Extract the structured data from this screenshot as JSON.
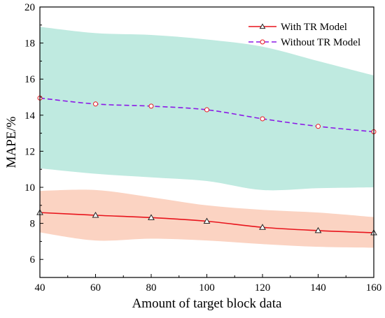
{
  "chart_data": {
    "type": "line",
    "xlabel": "Amount of target block data",
    "ylabel": "MAPE/%",
    "xlim": [
      40,
      160
    ],
    "ylim": [
      5,
      20
    ],
    "xticks": [
      40,
      60,
      80,
      100,
      120,
      140,
      160
    ],
    "yticks": [
      6,
      8,
      10,
      12,
      14,
      16,
      18,
      20
    ],
    "grid": false,
    "legend_position": "top-right",
    "x": [
      40,
      60,
      80,
      100,
      120,
      140,
      160
    ],
    "series": [
      {
        "name": "With TR Model",
        "values": [
          8.6,
          8.45,
          8.32,
          8.12,
          7.78,
          7.6,
          7.48
        ],
        "band_upper": [
          9.8,
          9.85,
          9.45,
          9.0,
          8.75,
          8.6,
          8.35
        ],
        "band_lower": [
          7.5,
          7.05,
          7.15,
          7.05,
          6.85,
          6.7,
          6.65
        ],
        "color": "#e8141c",
        "band_color": "#fbd3c2",
        "line_style": "solid",
        "marker": "triangle"
      },
      {
        "name": "Without TR Model",
        "values": [
          14.95,
          14.62,
          14.5,
          14.3,
          13.8,
          13.38,
          13.08
        ],
        "band_upper": [
          18.9,
          18.55,
          18.45,
          18.2,
          17.8,
          17.0,
          16.2
        ],
        "band_lower": [
          11.05,
          10.75,
          10.55,
          10.35,
          9.85,
          9.95,
          10.0
        ],
        "color": "#8b1ae6",
        "band_color": "#bfeae0",
        "line_style": "dashed",
        "marker": "circle",
        "marker_color": "#e8141c"
      }
    ]
  }
}
